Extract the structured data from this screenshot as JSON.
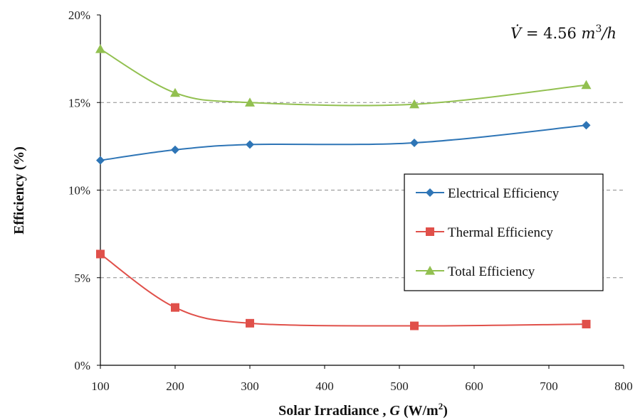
{
  "chart_data": {
    "type": "line",
    "xlabel": "Solar Irradiance , G (W/m²)",
    "xlabel_parts": [
      "Solar Irradiance , ",
      "G",
      " (W/m",
      "2",
      ")"
    ],
    "ylabel": "Efficiency (%)",
    "xlim": [
      100,
      800
    ],
    "ylim": [
      0,
      20
    ],
    "xticks": [
      "100",
      "200",
      "300",
      "400",
      "500",
      "600",
      "700",
      "800"
    ],
    "yticks": [
      "0%",
      "5%",
      "10%",
      "15%",
      "20%"
    ],
    "grid": "horizontal dashed",
    "legend_position": "right-center",
    "annotation": "V̇ = 4.56 m³/h",
    "annotation_parts": [
      "V̇",
      " = 4.56 ",
      "m",
      "3",
      "/h"
    ],
    "x": [
      100,
      200,
      300,
      520,
      750
    ],
    "series": [
      {
        "name": "Electrical Efficiency",
        "values": [
          11.7,
          12.3,
          12.6,
          12.7,
          13.7
        ],
        "color": "#2e75b6",
        "marker": "diamond"
      },
      {
        "name": "Thermal Efficiency",
        "values": [
          6.35,
          3.3,
          2.4,
          2.25,
          2.35
        ],
        "color": "#e0504a",
        "marker": "square"
      },
      {
        "name": "Total Efficiency",
        "values": [
          18.05,
          15.55,
          15.0,
          14.9,
          16.0
        ],
        "color": "#92c050",
        "marker": "triangle"
      }
    ]
  }
}
